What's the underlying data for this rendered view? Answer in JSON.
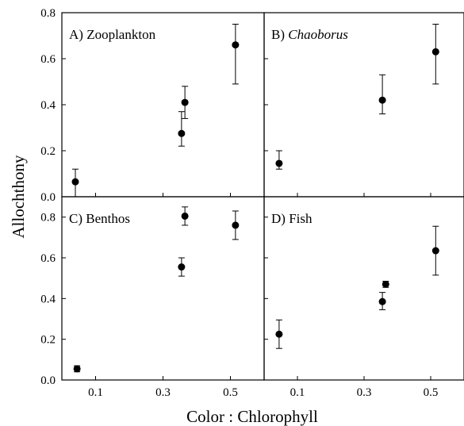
{
  "figure": {
    "ylabel": "Allochthony",
    "xlabel": "Color : Chlorophyll"
  },
  "chart_data": [
    {
      "type": "scatter",
      "panel": "A",
      "title_prefix": "A)",
      "title": "Zooplankton",
      "title_style": "normal",
      "x": [
        0.04,
        0.355,
        0.365,
        0.515
      ],
      "y": [
        0.065,
        0.275,
        0.41,
        0.66
      ],
      "y_err_low": [
        0.0,
        0.22,
        0.34,
        0.49
      ],
      "y_err_high": [
        0.12,
        0.37,
        0.48,
        0.75
      ],
      "xlim": [
        0.0,
        0.6
      ],
      "ylim": [
        0.0,
        0.8
      ],
      "xticks": [
        "0.1",
        "0.3",
        "0.5"
      ],
      "xtick_values": [
        0.1,
        0.3,
        0.5
      ],
      "yticks": [
        "0.0",
        "0.2",
        "0.4",
        "0.6",
        "0.8"
      ],
      "ytick_values": [
        0.0,
        0.2,
        0.4,
        0.6,
        0.8
      ]
    },
    {
      "type": "scatter",
      "panel": "B",
      "title_prefix": "B)",
      "title": "Chaoborus",
      "title_style": "italic",
      "x": [
        0.045,
        0.355,
        0.515
      ],
      "y": [
        0.145,
        0.42,
        0.63
      ],
      "y_err_low": [
        0.12,
        0.36,
        0.49
      ],
      "y_err_high": [
        0.2,
        0.53,
        0.75
      ],
      "xlim": [
        0.0,
        0.6
      ],
      "ylim": [
        0.0,
        0.8
      ],
      "xticks": [
        "0.1",
        "0.3",
        "0.5"
      ],
      "xtick_values": [
        0.1,
        0.3,
        0.5
      ],
      "yticks": [
        "",
        "",
        "",
        "",
        ""
      ],
      "ytick_values": [
        0.0,
        0.2,
        0.4,
        0.6,
        0.8
      ]
    },
    {
      "type": "scatter",
      "panel": "C",
      "title_prefix": "C)",
      "title": "Benthos",
      "title_style": "normal",
      "x": [
        0.045,
        0.355,
        0.365,
        0.515
      ],
      "y": [
        0.055,
        0.555,
        0.805,
        0.76
      ],
      "y_err_low": [
        0.04,
        0.51,
        0.76,
        0.69
      ],
      "y_err_high": [
        0.07,
        0.6,
        0.85,
        0.83
      ],
      "xlim": [
        0.0,
        0.6
      ],
      "ylim": [
        0.0,
        0.9
      ],
      "xticks": [
        "0.1",
        "0.3",
        "0.5"
      ],
      "xtick_values": [
        0.1,
        0.3,
        0.5
      ],
      "yticks": [
        "0.0",
        "0.2",
        "0.4",
        "0.6",
        "0.8"
      ],
      "ytick_values": [
        0.0,
        0.2,
        0.4,
        0.6,
        0.8
      ]
    },
    {
      "type": "scatter",
      "panel": "D",
      "title_prefix": "D)",
      "title": "Fish",
      "title_style": "normal",
      "x": [
        0.045,
        0.355,
        0.365,
        0.515
      ],
      "y": [
        0.225,
        0.385,
        0.47,
        0.635
      ],
      "y_err_low": [
        0.155,
        0.345,
        0.455,
        0.515
      ],
      "y_err_high": [
        0.295,
        0.43,
        0.485,
        0.755
      ],
      "xlim": [
        0.0,
        0.6
      ],
      "ylim": [
        0.0,
        0.9
      ],
      "xticks": [
        "0.1",
        "0.3",
        "0.5"
      ],
      "xtick_values": [
        0.1,
        0.3,
        0.5
      ],
      "yticks": [
        "",
        "",
        "",
        "",
        ""
      ],
      "ytick_values": [
        0.0,
        0.2,
        0.4,
        0.6,
        0.8
      ]
    }
  ]
}
